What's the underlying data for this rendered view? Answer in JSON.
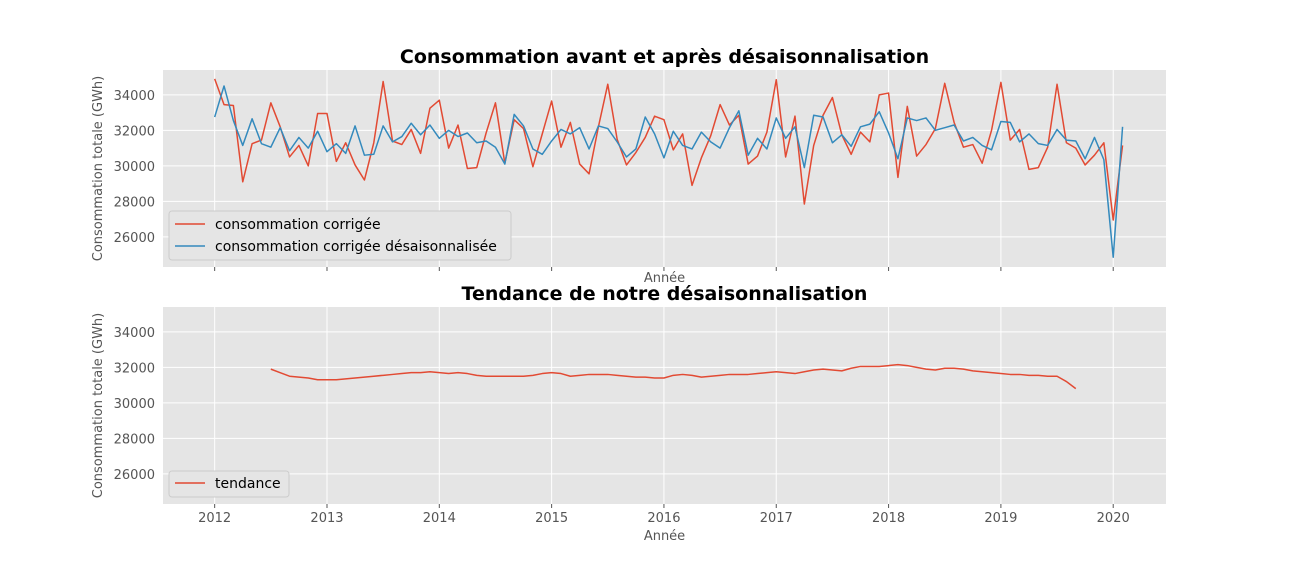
{
  "chart_data": [
    {
      "type": "line",
      "title": "Consommation avant et après désaisonnalisation",
      "xlabel": "Année",
      "ylabel": "Consommation totale (GWh)",
      "xlim": [
        2011.54,
        2020.47
      ],
      "ylim": [
        24300,
        35400
      ],
      "x_ticks": [
        "2012",
        "2013",
        "2014",
        "2015",
        "2016",
        "2017",
        "2018",
        "2019",
        "2020"
      ],
      "y_ticks": [
        26000,
        28000,
        30000,
        32000,
        34000
      ],
      "grid": true,
      "legend_position": "lower-left",
      "series": [
        {
          "name": "consommation corrigée",
          "color": "#E24A33",
          "x_start": "2012-01",
          "values": [
            34900,
            33450,
            33400,
            29100,
            31250,
            31450,
            33550,
            32200,
            30500,
            31150,
            30000,
            32950,
            32950,
            30250,
            31300,
            30050,
            29200,
            31300,
            34750,
            31400,
            31200,
            32050,
            30700,
            33250,
            33700,
            31000,
            32300,
            29850,
            29900,
            31850,
            33550,
            30150,
            32600,
            32100,
            29950,
            31800,
            33650,
            31050,
            32450,
            30100,
            29550,
            32200,
            34600,
            31500,
            30050,
            30750,
            31600,
            32800,
            32600,
            30900,
            31800,
            28900,
            30450,
            31700,
            33450,
            32300,
            32850,
            30100,
            30550,
            31900,
            34850,
            30500,
            32800,
            27850,
            31150,
            32850,
            33850,
            31750,
            30650,
            31900,
            31350,
            34000,
            34100,
            29350,
            33350,
            30550,
            31200,
            32100,
            34650,
            32450,
            31050,
            31200,
            30150,
            32000,
            34700,
            31450,
            32050,
            29800,
            29900,
            31050,
            34600,
            31300,
            31000,
            30050,
            30600,
            31300,
            26950,
            31150
          ]
        },
        {
          "name": "consommation corrigée désaisonnalisée",
          "color": "#348ABD",
          "x_start": "2012-01",
          "values": [
            32750,
            34500,
            32550,
            31150,
            32650,
            31250,
            31050,
            32150,
            30850,
            31600,
            31000,
            31950,
            30800,
            31250,
            30700,
            32250,
            30600,
            30650,
            32250,
            31350,
            31650,
            32400,
            31750,
            32300,
            31550,
            32000,
            31650,
            31850,
            31300,
            31400,
            31050,
            30100,
            32900,
            32250,
            30950,
            30650,
            31400,
            32050,
            31800,
            32150,
            30950,
            32250,
            32100,
            31350,
            30500,
            30950,
            32750,
            31800,
            30450,
            31950,
            31150,
            30950,
            31900,
            31350,
            31000,
            32150,
            33100,
            30600,
            31550,
            30950,
            32700,
            31550,
            32200,
            29900,
            32850,
            32750,
            31300,
            31750,
            31100,
            32200,
            32350,
            33050,
            31850,
            30400,
            32700,
            32550,
            32700,
            32000,
            32150,
            32300,
            31400,
            31600,
            31150,
            30900,
            32500,
            32450,
            31350,
            31800,
            31250,
            31150,
            32050,
            31450,
            31400,
            30400,
            31600,
            30350,
            24850,
            32200
          ]
        }
      ]
    },
    {
      "type": "line",
      "title": "Tendance de notre désaisonnalisation",
      "xlabel": "Année",
      "ylabel": "Consommation totale (GWh)",
      "xlim": [
        2011.54,
        2020.47
      ],
      "ylim": [
        24300,
        35400
      ],
      "x_ticks": [
        "2012",
        "2013",
        "2014",
        "2015",
        "2016",
        "2017",
        "2018",
        "2019",
        "2020"
      ],
      "y_ticks": [
        26000,
        28000,
        30000,
        32000,
        34000
      ],
      "grid": true,
      "legend_position": "lower-left",
      "series": [
        {
          "name": "tendance",
          "color": "#E24A33",
          "x_start": "2012-07",
          "values": [
            31900,
            31700,
            31500,
            31450,
            31400,
            31300,
            31300,
            31300,
            31350,
            31400,
            31450,
            31500,
            31550,
            31600,
            31650,
            31700,
            31700,
            31750,
            31700,
            31650,
            31700,
            31650,
            31550,
            31500,
            31500,
            31500,
            31500,
            31500,
            31550,
            31650,
            31700,
            31650,
            31500,
            31550,
            31600,
            31600,
            31600,
            31550,
            31500,
            31450,
            31450,
            31400,
            31400,
            31550,
            31600,
            31550,
            31450,
            31500,
            31550,
            31600,
            31600,
            31600,
            31650,
            31700,
            31750,
            31700,
            31650,
            31750,
            31850,
            31900,
            31850,
            31800,
            31950,
            32050,
            32050,
            32050,
            32100,
            32150,
            32100,
            32000,
            31900,
            31850,
            31950,
            31950,
            31900,
            31800,
            31750,
            31700,
            31650,
            31600,
            31600,
            31550,
            31550,
            31500,
            31500,
            31200,
            30800
          ]
        }
      ]
    }
  ]
}
